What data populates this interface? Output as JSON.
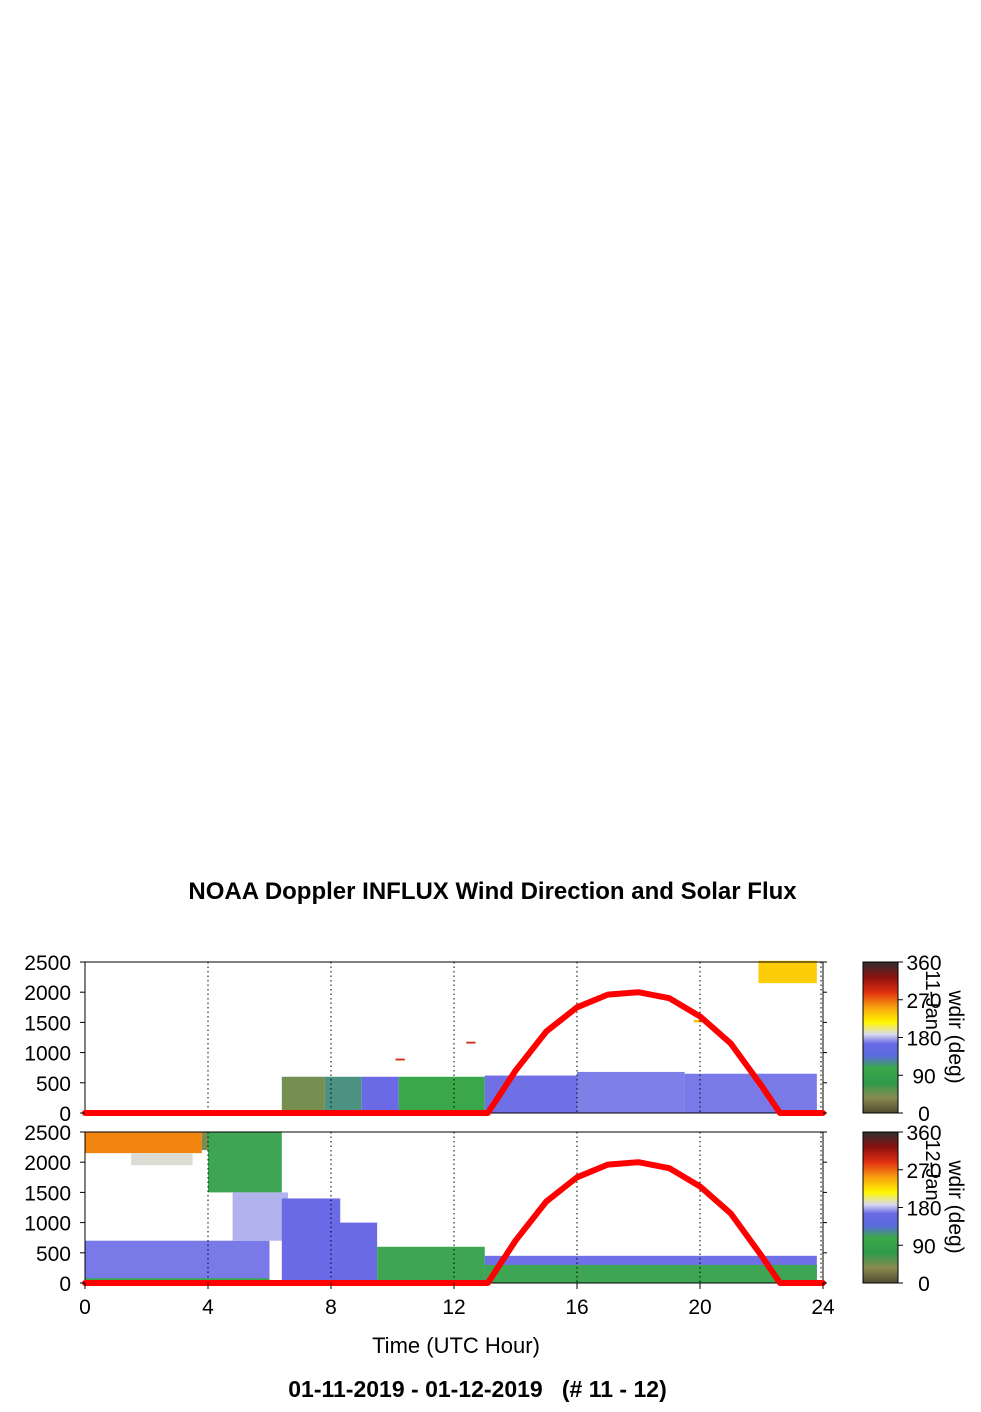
{
  "title": "NOAA Doppler INFLUX Wind Direction and Solar Flux",
  "footer": "01-11-2019 - 01-12-2019   (# 11 - 12)",
  "chart_data": {
    "type": "heatmap",
    "xlabel": "Time (UTC Hour)",
    "xlim": [
      0,
      24
    ],
    "xticks": [
      "0",
      "4",
      "8",
      "12",
      "16",
      "20",
      "24"
    ],
    "ylim": [
      0,
      2500
    ],
    "yticks": [
      "0",
      "500",
      "1000",
      "1500",
      "2000",
      "2500"
    ],
    "grid": "dotted vertical lines every 4 hours",
    "colorbar": {
      "label": "wdir (deg)",
      "range": [
        0,
        360
      ],
      "ticks": [
        "0",
        "90",
        "180",
        "270",
        "360"
      ],
      "colormap": [
        "#504a30",
        "#8a8a50",
        "#2e9a4a",
        "#3aa84a",
        "#6a6ae6",
        "#6a6ae6",
        "#d8d8f0",
        "#fff800",
        "#f8a010",
        "#e03010",
        "#8a1010",
        "#303030"
      ]
    },
    "solar_flux_curve": {
      "color": "#ff0000",
      "points": [
        [
          0,
          0
        ],
        [
          13.1,
          0
        ],
        [
          14,
          700
        ],
        [
          15,
          1350
        ],
        [
          16,
          1750
        ],
        [
          17,
          1960
        ],
        [
          18,
          2000
        ],
        [
          19,
          1900
        ],
        [
          20,
          1600
        ],
        [
          21,
          1150
        ],
        [
          22,
          450
        ],
        [
          22.6,
          0
        ],
        [
          24,
          0
        ]
      ]
    },
    "panels": [
      {
        "name": "11",
        "panel_label": "11-Jan",
        "cells": [
          {
            "t0": 6.4,
            "t1": 7.8,
            "h0": 0,
            "h1": 600,
            "deg": 40
          },
          {
            "t0": 7.8,
            "t1": 9.0,
            "h0": 0,
            "h1": 600,
            "deg": 110
          },
          {
            "t0": 9.0,
            "t1": 10.2,
            "h0": 0,
            "h1": 600,
            "deg": 150
          },
          {
            "t0": 10.2,
            "t1": 13.0,
            "h0": 0,
            "h1": 600,
            "deg": 95
          },
          {
            "t0": 13.0,
            "t1": 16.0,
            "h0": 0,
            "h1": 620,
            "deg": 165
          },
          {
            "t0": 16.0,
            "t1": 19.5,
            "h0": 0,
            "h1": 680,
            "deg": 170
          },
          {
            "t0": 19.5,
            "t1": 23.8,
            "h0": 0,
            "h1": 650,
            "deg": 168
          },
          {
            "t0": 21.9,
            "t1": 23.8,
            "h0": 2150,
            "h1": 2520,
            "deg": 245
          },
          {
            "t0": 10.1,
            "t1": 10.4,
            "h0": 870,
            "h1": 900,
            "deg": 300
          },
          {
            "t0": 12.4,
            "t1": 12.7,
            "h0": 1150,
            "h1": 1180,
            "deg": 300
          },
          {
            "t0": 19.8,
            "t1": 20.2,
            "h0": 1500,
            "h1": 1540,
            "deg": 250
          }
        ]
      },
      {
        "name": "12",
        "panel_label": "12-Jan",
        "cells": [
          {
            "t0": 0.0,
            "t1": 6.0,
            "h0": 0,
            "h1": 700,
            "deg": 168
          },
          {
            "t0": 0.0,
            "t1": 6.0,
            "h0": 0,
            "h1": 80,
            "deg": 100
          },
          {
            "t0": 0.0,
            "t1": 3.8,
            "h0": 2150,
            "h1": 2500,
            "deg": 270
          },
          {
            "t0": 1.5,
            "t1": 3.5,
            "h0": 1950,
            "h1": 2150,
            "deg": 200
          },
          {
            "t0": 3.8,
            "t1": 4.8,
            "h0": 2200,
            "h1": 2500,
            "deg": 40
          },
          {
            "t0": 4.0,
            "t1": 6.4,
            "h0": 1500,
            "h1": 2500,
            "deg": 100
          },
          {
            "t0": 4.8,
            "t1": 6.6,
            "h0": 700,
            "h1": 1500,
            "deg": 185
          },
          {
            "t0": 6.4,
            "t1": 8.3,
            "h0": 0,
            "h1": 1400,
            "deg": 160
          },
          {
            "t0": 7.8,
            "t1": 9.5,
            "h0": 0,
            "h1": 1000,
            "deg": 140
          },
          {
            "t0": 9.5,
            "t1": 13.0,
            "h0": 0,
            "h1": 600,
            "deg": 100
          },
          {
            "t0": 13.0,
            "t1": 23.8,
            "h0": 0,
            "h1": 450,
            "deg": 165
          },
          {
            "t0": 13.0,
            "t1": 23.8,
            "h0": 0,
            "h1": 300,
            "deg": 100
          }
        ]
      }
    ]
  }
}
